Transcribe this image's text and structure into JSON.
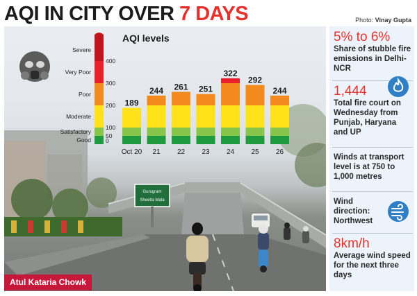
{
  "header": {
    "title_main": "AQI IN CITY OVER ",
    "title_accent": "7 DAYS",
    "credit_label": "Photo: ",
    "credit_name": "Vinay Gupta"
  },
  "photo": {
    "location_caption": "Atul Kataria Chowk",
    "sign_text_1": "Gurugram",
    "sign_text_2": "Sheetla Mata"
  },
  "colors": {
    "accent_red": "#e5312b",
    "caption_red": "#c7173a",
    "severe": "#c0141c",
    "very_poor": "#e8202b",
    "poor": "#f28a1e",
    "moderate": "#ffe21a",
    "satisfactory": "#86c54a",
    "good": "#1f9a3f",
    "icon_blue": "#2f7fc6",
    "sidebar_bg": "#ecf3fa"
  },
  "chart_data": {
    "type": "bar",
    "title": "AQI levels",
    "categories": [
      "Oct 20",
      "21",
      "22",
      "23",
      "24",
      "25",
      "26"
    ],
    "values": [
      189,
      244,
      261,
      251,
      322,
      292,
      244
    ],
    "ylim": [
      0,
      500
    ],
    "y_ticks": [
      0,
      50,
      100,
      200,
      300,
      400
    ],
    "bands": [
      {
        "name": "Good",
        "min": 0,
        "max": 50,
        "color": "#1f9a3f"
      },
      {
        "name": "Satisfactory",
        "min": 50,
        "max": 100,
        "color": "#86c54a"
      },
      {
        "name": "Moderate",
        "min": 100,
        "max": 200,
        "color": "#ffe21a"
      },
      {
        "name": "Poor",
        "min": 200,
        "max": 300,
        "color": "#f28a1e"
      },
      {
        "name": "Very Poor",
        "min": 300,
        "max": 400,
        "color": "#e8202b"
      },
      {
        "name": "Severe",
        "min": 400,
        "max": 500,
        "color": "#c0141c"
      }
    ],
    "grid": false,
    "legend": "none",
    "icon": "gas-mask-icon"
  },
  "sidebar": {
    "facts": [
      {
        "big": "5% to 6%",
        "text": "Share of stubble fire emissions in Delhi-NCR",
        "icon": null
      },
      {
        "big": "1,444",
        "text": "Total fire court on Wednesday from Punjab, Haryana and UP",
        "icon": "flame-icon"
      },
      {
        "big": "",
        "text": "Winds at transport level is at 750 to 1,000 metres",
        "icon": null
      },
      {
        "big": "",
        "text": "Wind direction: Northwest",
        "icon": "wind-icon"
      },
      {
        "big": "8km/h",
        "text": "Average wind speed for the next three days",
        "icon": null
      }
    ]
  }
}
